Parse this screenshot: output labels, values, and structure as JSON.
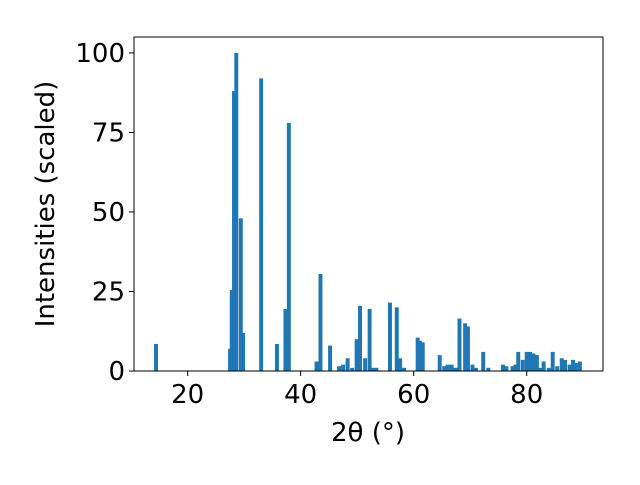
{
  "chart_data": {
    "type": "bar",
    "xlabel": "2θ (°)",
    "ylabel": "Intensities (scaled)",
    "xlim": [
      10.5,
      93.5
    ],
    "ylim": [
      0,
      105
    ],
    "x_ticks": [
      20,
      40,
      60,
      80
    ],
    "y_ticks": [
      0,
      25,
      50,
      75,
      100
    ],
    "bar_width": 0.7,
    "bar_color": "#1f77b4",
    "x": [
      14.4,
      27.5,
      27.8,
      28.2,
      28.6,
      29.4,
      29.8,
      33.0,
      35.8,
      37.3,
      37.9,
      42.8,
      43.5,
      45.2,
      46.8,
      47.5,
      48.3,
      49.1,
      49.9,
      50.5,
      51.4,
      52.2,
      52.8,
      53.4,
      55.8,
      57.0,
      57.6,
      58.3,
      60.7,
      61.1,
      61.6,
      64.6,
      65.4,
      66.0,
      66.7,
      67.4,
      68.1,
      69.1,
      69.6,
      70.4,
      71.0,
      72.3,
      73.2,
      75.8,
      76.4,
      77.5,
      78.0,
      78.5,
      79.3,
      80.0,
      80.6,
      81.2,
      81.8,
      82.4,
      83.0,
      83.9,
      84.6,
      85.4,
      86.2,
      86.8,
      87.6,
      88.2,
      88.7,
      89.4
    ],
    "values": [
      8.5,
      7,
      25.5,
      88,
      100,
      48,
      12,
      92,
      8.5,
      19.5,
      78,
      3,
      30.5,
      8,
      1.5,
      2,
      4,
      1,
      10,
      20.5,
      4,
      19.5,
      1,
      1,
      21.5,
      20,
      4,
      1,
      10.5,
      9.5,
      9,
      5,
      1.5,
      2,
      2,
      1,
      16.5,
      15,
      14,
      2,
      1,
      6,
      1,
      2,
      1.5,
      1.5,
      2,
      6,
      3.5,
      6,
      6,
      5.5,
      5,
      1,
      3,
      1,
      6,
      1.5,
      4,
      3.5,
      2,
      3.5,
      2.5,
      3
    ]
  }
}
